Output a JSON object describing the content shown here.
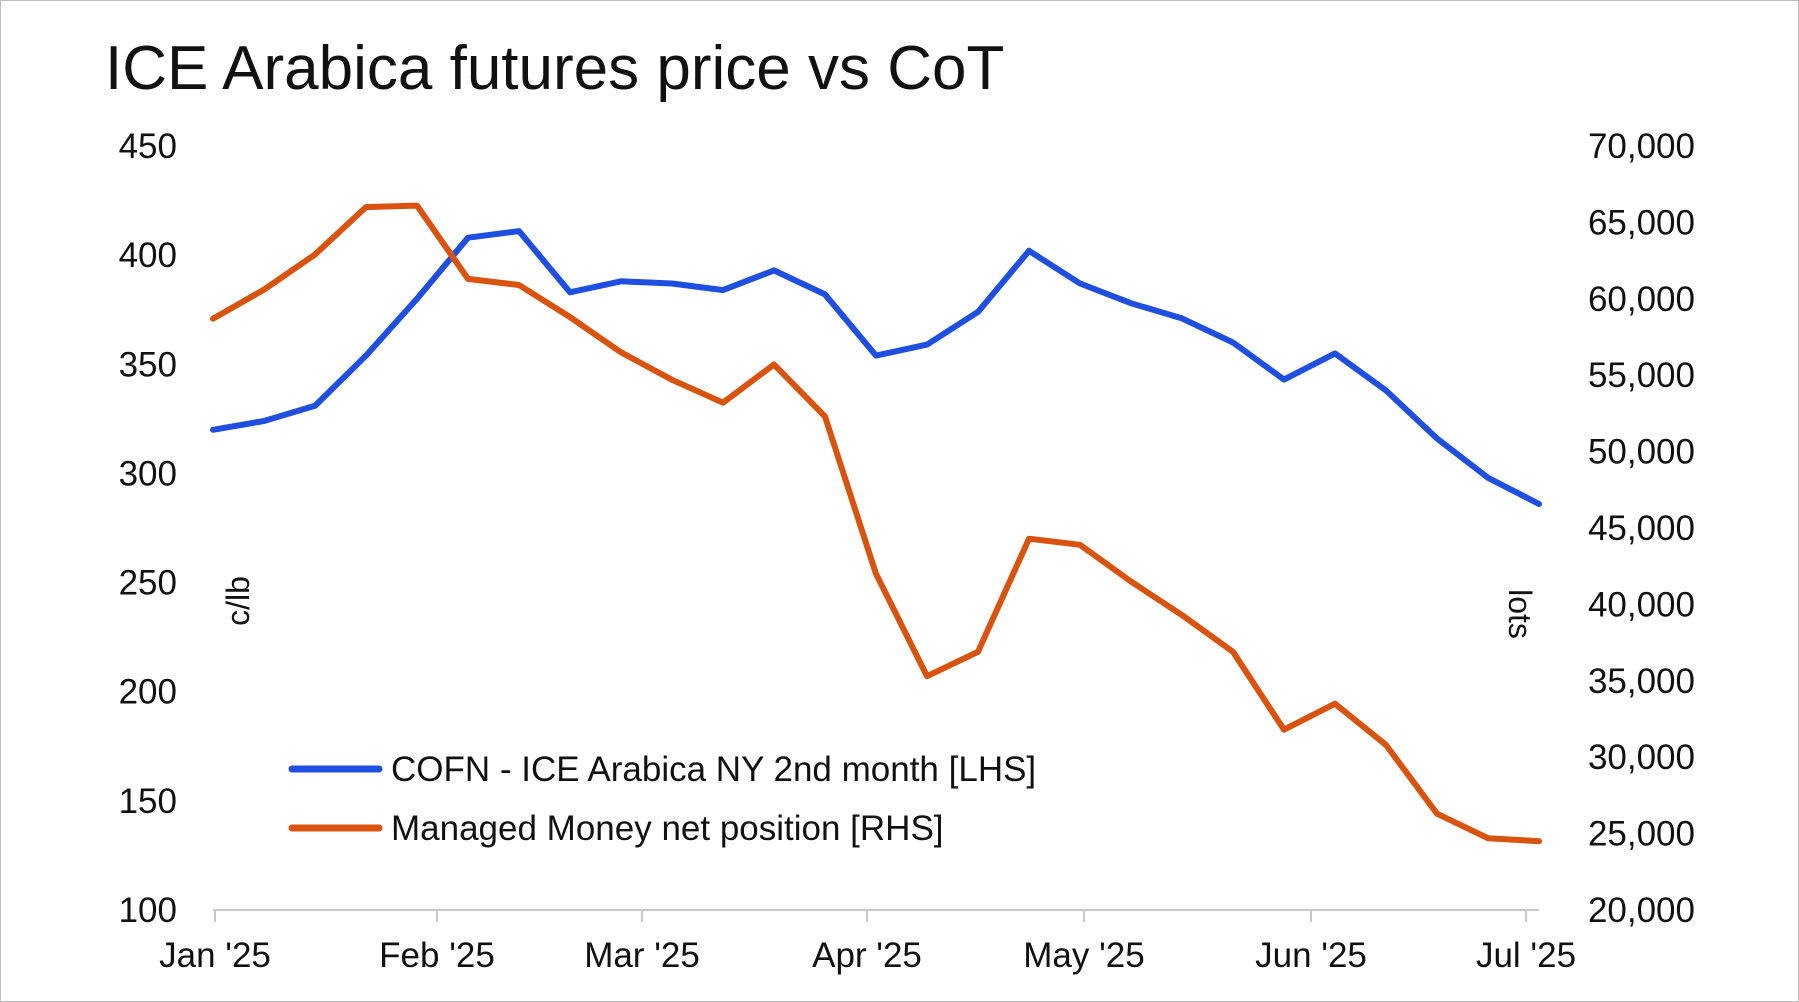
{
  "chart_data": {
    "type": "line",
    "title": "ICE Arabica futures price vs CoT",
    "y_left_label": "c/lb",
    "y_right_label": "lots",
    "y_left_lim": [
      100,
      450
    ],
    "y_right_lim": [
      20000,
      70000
    ],
    "y_left_ticks": [
      "450",
      "400",
      "350",
      "300",
      "250",
      "200",
      "150",
      "100"
    ],
    "y_right_ticks": [
      "70,000",
      "65,000",
      "60,000",
      "55,000",
      "50,000",
      "45,000",
      "40,000",
      "35,000",
      "30,000",
      "25,000",
      "20,000"
    ],
    "x_ticks": [
      "Jan '25",
      "Feb '25",
      "Mar '25",
      "Apr '25",
      "May '25",
      "Jun '25",
      "Jul '25"
    ],
    "grid": false,
    "legend_position": "bottom-left",
    "series": [
      {
        "name": "COFN - ICE Arabica NY 2nd month [LHS]",
        "axis": "left",
        "color": "#1f4fe0",
        "values": [
          320,
          324,
          331,
          354,
          380,
          408,
          411,
          383,
          388,
          387,
          384,
          393,
          382,
          354,
          359,
          374,
          402,
          387,
          378,
          371,
          360,
          343,
          355,
          338,
          316,
          298,
          286
        ]
      },
      {
        "name": "Managed Money net position [RHS]",
        "axis": "right",
        "color": "#d9530e",
        "values": [
          58700,
          60600,
          62900,
          66000,
          66100,
          61300,
          60900,
          58800,
          56500,
          54700,
          53200,
          55700,
          52300,
          42000,
          35300,
          36900,
          44300,
          43900,
          41500,
          39300,
          36900,
          31800,
          33500,
          30800,
          26300,
          24700,
          24500
        ]
      }
    ]
  }
}
